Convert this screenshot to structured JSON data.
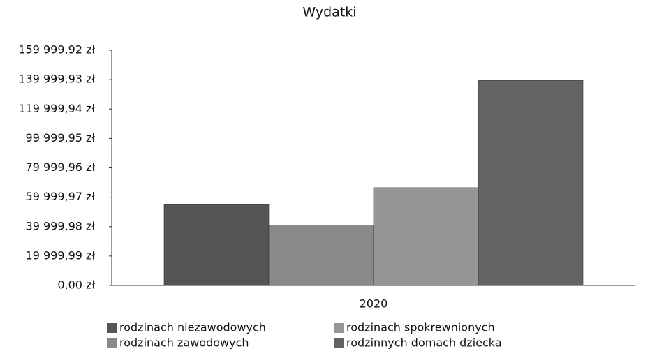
{
  "chart_data": {
    "type": "bar",
    "title": "Wydatki",
    "categories": [
      "2020"
    ],
    "series": [
      {
        "name": "rodzinach niezawodowych",
        "color": "#555555",
        "values": [
          55000
        ]
      },
      {
        "name": "rodzinach zawodowych",
        "color": "#8a8a8a",
        "values": [
          41000
        ]
      },
      {
        "name": "rodzinach spokrewnionych",
        "color": "#969696",
        "values": [
          66500
        ]
      },
      {
        "name": "rodzinnych domach dziecka",
        "color": "#636363",
        "values": [
          139500
        ]
      }
    ],
    "ylim": [
      0,
      159999.92
    ],
    "yticks": [
      {
        "value": 0,
        "label": "0,00 zł"
      },
      {
        "value": 19999.99,
        "label": "19 999,99 zł"
      },
      {
        "value": 39999.98,
        "label": "39 999,98 zł"
      },
      {
        "value": 59999.97,
        "label": "59 999,97 zł"
      },
      {
        "value": 79999.96,
        "label": "79 999,96 zł"
      },
      {
        "value": 99999.95,
        "label": "99 999,95 zł"
      },
      {
        "value": 119999.94,
        "label": "119 999,94 zł"
      },
      {
        "value": 139999.93,
        "label": "139 999,93 zł"
      },
      {
        "value": 159999.92,
        "label": "159 999,92 zł"
      }
    ]
  }
}
